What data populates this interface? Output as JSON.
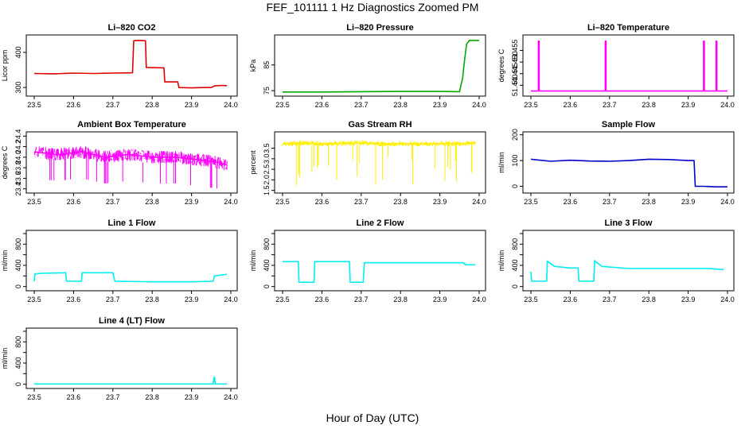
{
  "figure": {
    "title": "FEF_101111  1 Hz Diagnostics Zoomed PM",
    "xlabel": "Hour of Day (UTC)"
  },
  "chart_data": [
    {
      "type": "line",
      "title": "Li–820 CO2",
      "ylabel": "Licor ppm",
      "color": "#dd0000",
      "xlim": [
        23.5,
        24.0
      ],
      "ylim": [
        280,
        445
      ],
      "xticks": [
        "23.5",
        "23.6",
        "23.7",
        "23.8",
        "23.9",
        "24.0"
      ],
      "yticks": [
        300,
        400
      ],
      "series": [
        {
          "x": [
            23.5,
            23.55,
            23.6,
            23.65,
            23.7,
            23.75,
            23.753,
            23.765,
            23.783,
            23.785,
            23.83,
            23.832,
            23.865,
            23.868,
            23.9,
            23.93,
            23.95,
            23.96,
            23.98,
            23.99
          ],
          "y": [
            340,
            339,
            341,
            340,
            341,
            342,
            433,
            434,
            433,
            357,
            356,
            316,
            316,
            300,
            299,
            300,
            300,
            305,
            306,
            305
          ]
        }
      ]
    },
    {
      "type": "line",
      "title": "Li–820 Pressure",
      "ylabel": "kPa",
      "color": "#00aa00",
      "xlim": [
        23.5,
        24.0
      ],
      "ylim": [
        73.5,
        96
      ],
      "xticks": [
        "23.5",
        "23.6",
        "23.7",
        "23.8",
        "23.9",
        "24.0"
      ],
      "yticks": [
        75,
        85
      ],
      "series": [
        {
          "x": [
            23.5,
            23.6,
            23.7,
            23.8,
            23.9,
            23.95,
            23.958,
            23.963,
            23.968,
            23.975,
            24.0
          ],
          "y": [
            74.5,
            74.5,
            74.6,
            74.7,
            74.7,
            74.6,
            80,
            87,
            93,
            94.5,
            94.5
          ]
        }
      ]
    },
    {
      "type": "line",
      "title": "Li–820 Temperature",
      "ylabel": "degrees C",
      "color": "#ff00ff",
      "xlim": [
        23.5,
        24.0
      ],
      "ylim": [
        51.436,
        51.461
      ],
      "xticks": [
        "23.5",
        "23.6",
        "23.7",
        "23.8",
        "23.9",
        "24.0"
      ],
      "yticks": [
        51.44,
        51.445,
        51.45,
        51.455
      ],
      "ytick_labels": [
        "51.440",
        "51.445",
        "51.450",
        "51.455"
      ],
      "series": [
        {
          "x": [
            23.5,
            23.519,
            23.519,
            23.521,
            23.521,
            23.689,
            23.689,
            23.691,
            23.691,
            23.939,
            23.939,
            23.941,
            23.941,
            23.971,
            23.971,
            23.973,
            23.973,
            24.0
          ],
          "y": [
            51.4375,
            51.4375,
            51.459,
            51.459,
            51.4375,
            51.4375,
            51.459,
            51.459,
            51.4375,
            51.4375,
            51.459,
            51.459,
            51.4375,
            51.4375,
            51.459,
            51.459,
            51.4375,
            51.4375
          ]
        }
      ]
    },
    {
      "type": "line",
      "title": "Ambient Box Temperature",
      "ylabel": "degrees C",
      "color": "#ff00ff",
      "xlim": [
        23.5,
        24.0
      ],
      "ylim": [
        23.35,
        24.45
      ],
      "xticks": [
        "23.5",
        "23.6",
        "23.7",
        "23.8",
        "23.9",
        "24.0"
      ],
      "yticks": [
        23.4,
        23.6,
        23.8,
        24.0,
        24.2,
        24.4
      ],
      "ytick_labels": [
        "23.4",
        "23.6",
        "23.8",
        "24.0",
        "24.2",
        "24.4"
      ],
      "series": [
        {
          "x": [
            23.5,
            23.56,
            23.62,
            23.68,
            23.74,
            23.8,
            23.86,
            23.92,
            23.97,
            23.99
          ],
          "y": [
            24.1,
            24.05,
            24.1,
            24.0,
            24.05,
            24.0,
            24.0,
            23.95,
            23.9,
            23.85
          ]
        }
      ]
    },
    {
      "type": "line",
      "title": "Gas Stream RH",
      "ylabel": "percent",
      "color": "#ffee00",
      "xlim": [
        23.5,
        24.0
      ],
      "ylim": [
        1.45,
        4.2
      ],
      "xticks": [
        "23.5",
        "23.6",
        "23.7",
        "23.8",
        "23.9",
        "24.0"
      ],
      "yticks": [
        1.5,
        2.0,
        2.5,
        3.0,
        3.5
      ],
      "ytick_labels": [
        "1.5",
        "2.0",
        "2.5",
        "3.0",
        "3.5"
      ],
      "series": [
        {
          "x": [
            23.5,
            23.55,
            23.6,
            23.65,
            23.7,
            23.75,
            23.8,
            23.85,
            23.9,
            23.95,
            23.99
          ],
          "y": [
            3.7,
            3.75,
            3.7,
            3.72,
            3.75,
            3.7,
            3.72,
            3.7,
            3.72,
            3.7,
            3.75
          ]
        }
      ]
    },
    {
      "type": "line",
      "title": "Sample Flow",
      "ylabel": "ml/min",
      "color": "#0000cc",
      "xlim": [
        23.5,
        24.0
      ],
      "ylim": [
        -20,
        205
      ],
      "xticks": [
        "23.5",
        "23.6",
        "23.7",
        "23.8",
        "23.9",
        "24.0"
      ],
      "yticks": [
        0,
        100,
        200
      ],
      "series": [
        {
          "x": [
            23.5,
            23.55,
            23.6,
            23.65,
            23.7,
            23.75,
            23.8,
            23.85,
            23.9,
            23.915,
            23.918,
            23.94,
            23.97,
            24.0
          ],
          "y": [
            105,
            97,
            101,
            98,
            97,
            100,
            105,
            104,
            100,
            100,
            0,
            0,
            -2,
            -2
          ]
        }
      ]
    },
    {
      "type": "line",
      "title": "Line 1 Flow",
      "ylabel": "ml/min",
      "color": "#00eeee",
      "xlim": [
        23.5,
        24.0
      ],
      "ylim": [
        -50,
        1030
      ],
      "xticks": [
        "23.5",
        "23.6",
        "23.7",
        "23.8",
        "23.9",
        "24.0"
      ],
      "yticks": [
        0,
        200,
        400,
        600,
        800,
        1000
      ],
      "ytick_labels": [
        "0",
        "",
        "400",
        "",
        "800",
        ""
      ],
      "series": [
        {
          "x": [
            23.5,
            23.502,
            23.52,
            23.58,
            23.582,
            23.62,
            23.622,
            23.7,
            23.705,
            23.8,
            23.9,
            23.955,
            23.958,
            23.99
          ],
          "y": [
            100,
            240,
            250,
            260,
            100,
            100,
            260,
            260,
            100,
            90,
            90,
            100,
            200,
            230
          ]
        }
      ]
    },
    {
      "type": "line",
      "title": "Line 2 Flow",
      "ylabel": "ml/min",
      "color": "#00eeee",
      "xlim": [
        23.5,
        24.0
      ],
      "ylim": [
        -50,
        1030
      ],
      "xticks": [
        "23.5",
        "23.6",
        "23.7",
        "23.8",
        "23.9",
        "24.0"
      ],
      "yticks": [
        0,
        200,
        400,
        600,
        800,
        1000
      ],
      "ytick_labels": [
        "0",
        "",
        "400",
        "",
        "800",
        ""
      ],
      "series": [
        {
          "x": [
            23.5,
            23.54,
            23.542,
            23.58,
            23.582,
            23.67,
            23.672,
            23.705,
            23.708,
            23.8,
            23.9,
            23.96,
            23.965,
            23.99
          ],
          "y": [
            470,
            470,
            80,
            80,
            470,
            470,
            80,
            80,
            450,
            450,
            450,
            450,
            410,
            410
          ]
        }
      ]
    },
    {
      "type": "line",
      "title": "Line 3 Flow",
      "ylabel": "ml/min",
      "color": "#00eeee",
      "xlim": [
        23.5,
        24.0
      ],
      "ylim": [
        -50,
        1030
      ],
      "xticks": [
        "23.5",
        "23.6",
        "23.7",
        "23.8",
        "23.9",
        "24.0"
      ],
      "yticks": [
        0,
        200,
        400,
        600,
        800,
        1000
      ],
      "ytick_labels": [
        "0",
        "",
        "400",
        "",
        "800",
        ""
      ],
      "series": [
        {
          "x": [
            23.5,
            23.502,
            23.504,
            23.54,
            23.542,
            23.56,
            23.6,
            23.62,
            23.622,
            23.66,
            23.662,
            23.68,
            23.75,
            23.85,
            23.95,
            23.99
          ],
          "y": [
            280,
            100,
            100,
            100,
            480,
            380,
            350,
            350,
            100,
            100,
            490,
            380,
            340,
            340,
            340,
            320
          ]
        }
      ]
    },
    {
      "type": "line",
      "title": "Line 4 (LT) Flow",
      "ylabel": "ml/min",
      "color": "#00eeee",
      "xlim": [
        23.5,
        24.0
      ],
      "ylim": [
        -50,
        1030
      ],
      "xticks": [
        "23.5",
        "23.6",
        "23.7",
        "23.8",
        "23.9",
        "24.0"
      ],
      "yticks": [
        0,
        200,
        400,
        600,
        800,
        1000
      ],
      "ytick_labels": [
        "0",
        "",
        "400",
        "",
        "800",
        ""
      ],
      "series": [
        {
          "x": [
            23.5,
            23.6,
            23.7,
            23.8,
            23.9,
            23.955,
            23.957,
            23.959,
            23.96,
            23.99
          ],
          "y": [
            5,
            5,
            5,
            5,
            5,
            5,
            130,
            130,
            5,
            5
          ]
        }
      ]
    }
  ]
}
